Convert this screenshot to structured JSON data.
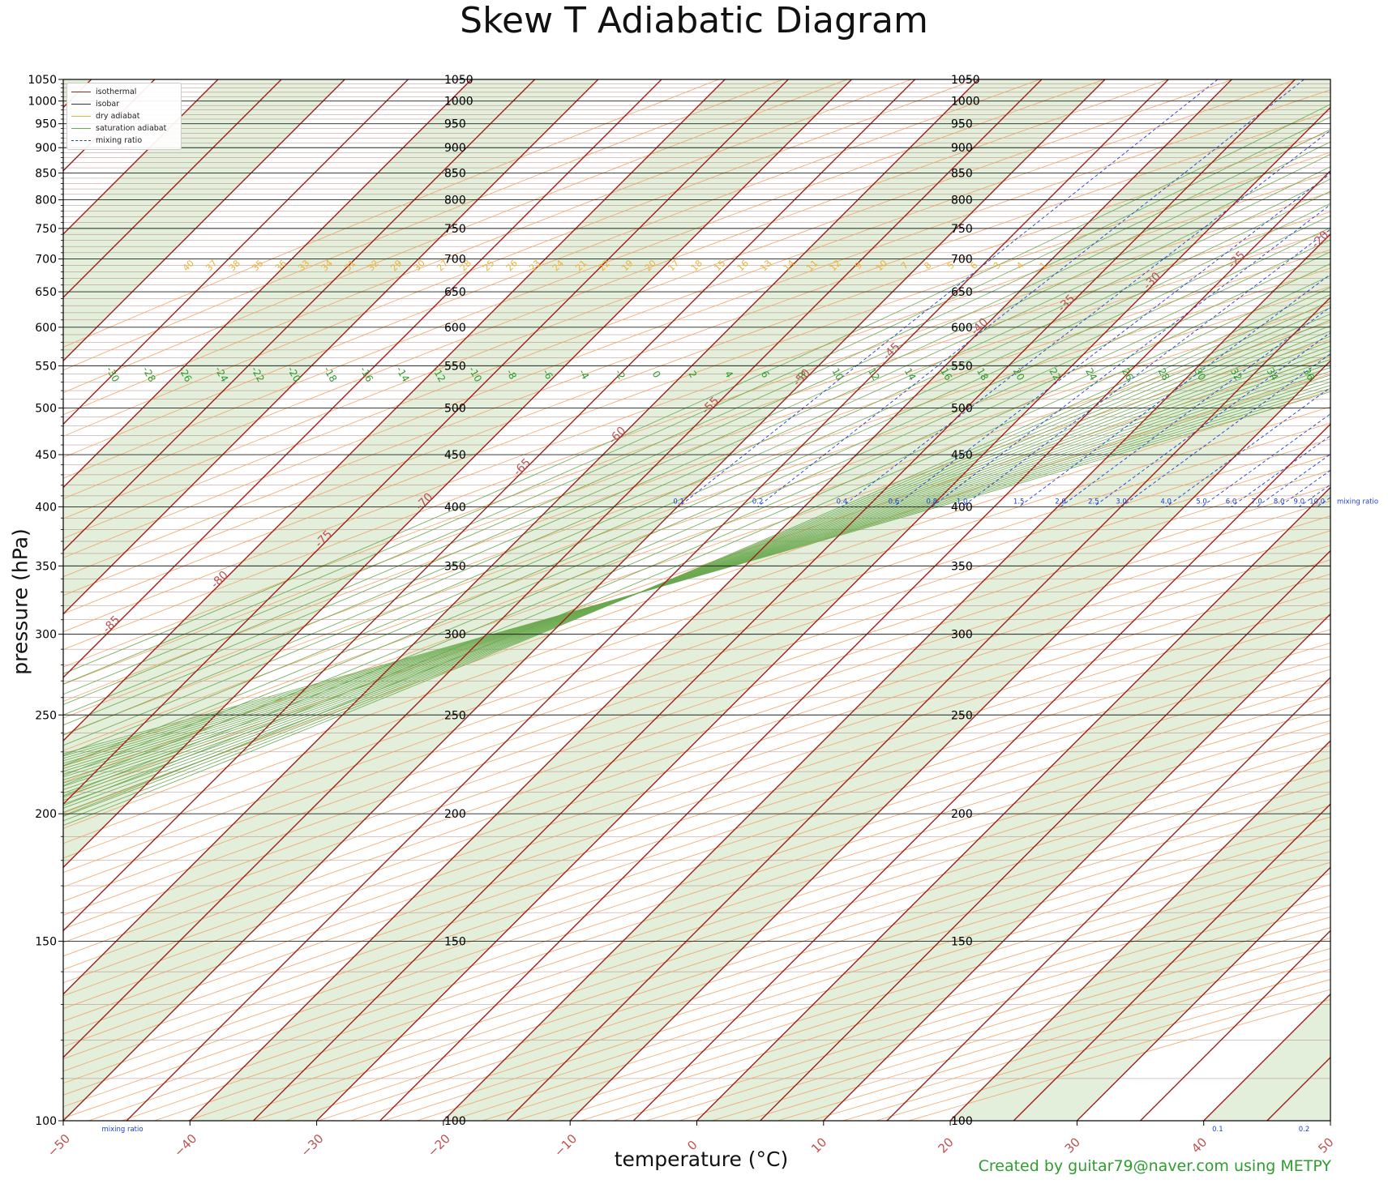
{
  "chart_data": {
    "type": "skew-t",
    "title": "Skew T Adiabatic Diagram",
    "xlabel": "temperature (°C)",
    "ylabel": "pressure (hPa)",
    "credit": "Created by guitar79@naver.com using METPY",
    "xlim": [
      -50,
      50
    ],
    "ylim": [
      1050,
      100
    ],
    "y_scale": "log",
    "x_ticks": [
      "−50",
      "−40",
      "−30",
      "−20",
      "−10",
      "0",
      "10",
      "20",
      "30",
      "40",
      "50"
    ],
    "x_tick_values": [
      -50,
      -40,
      -30,
      -20,
      -10,
      0,
      10,
      20,
      30,
      40,
      50
    ],
    "y_ticks": [
      100,
      150,
      200,
      250,
      300,
      350,
      400,
      450,
      500,
      550,
      600,
      650,
      700,
      750,
      800,
      850,
      900,
      950,
      1000,
      1050
    ],
    "legend": {
      "placement": "top-left",
      "entries": [
        {
          "label": "isothermal",
          "color": "#a0201a"
        },
        {
          "label": "isobar",
          "color": "#333333"
        },
        {
          "label": "dry adiabat",
          "color": "#e8b040"
        },
        {
          "label": "saturation adiabat",
          "color": "#6aa84f"
        },
        {
          "label": "mixing ratio",
          "color": "#1a3fd6"
        }
      ]
    },
    "isobar_labels": [
      100,
      150,
      200,
      250,
      300,
      350,
      400,
      450,
      500,
      550,
      600,
      650,
      700,
      750,
      800,
      850,
      900,
      950,
      1000,
      1050
    ],
    "isobar_label_columns": [
      -20,
      20
    ],
    "isotherms": {
      "from": -160,
      "to": 50,
      "step": 5
    },
    "moist_adiabat_labels": [
      -30,
      -28,
      -26,
      -24,
      -22,
      -20,
      -18,
      -16,
      -14,
      -12,
      -10,
      -8,
      -6,
      -4,
      -2,
      0,
      2,
      4,
      6,
      8,
      10,
      12,
      14,
      16,
      18,
      20,
      22,
      24,
      26,
      28,
      30,
      32,
      34,
      36,
      38
    ],
    "mixing_ratio_labels_400": [
      "0.1",
      "0.2",
      "0.4",
      "0.6",
      "0.8",
      "1.0",
      "1.5",
      "2.0",
      "2.5",
      "3.0",
      "4.0",
      "5.0",
      "6.0",
      "7.0",
      "8.0",
      "9.0",
      "10.0",
      "12.0",
      "14.0",
      "16.0",
      "18.0",
      "20.0",
      "22.0",
      "24.0",
      "26.0",
      "28.0",
      "30.0"
    ],
    "mixing_ratio_labels_1050": [
      "0.1",
      "0.2",
      "0.4",
      "0.6",
      "0.8",
      "1.0",
      "1.5",
      "2.0",
      "2.5",
      "3.0",
      "4.0",
      "5.0",
      "6.0",
      "7.0",
      "8.0",
      "9.0",
      "10.0",
      "12.0",
      "14.0",
      "16.0",
      "18.0",
      "20.0",
      "22.0",
      "24.0",
      "26.0",
      "28.0",
      "30.0",
      "33.0",
      "36.0",
      "40.0",
      "44.0",
      "48.0",
      "52.0",
      "56.0",
      "60.0",
      "65.0",
      "70.0"
    ],
    "mixing_ratio_title": "mixing ratio",
    "colors": {
      "isotherm": "#a0201a",
      "isotherm_label": "#c05050",
      "isobar": "#222222",
      "isobar_minor": "#a06060",
      "dry_adiabat": "#f0a060",
      "moist_adiabat": "#6aa84f",
      "moist_label": "#2a9a2a",
      "mixing_ratio": "#1a3fd6",
      "band_fill": "#e3eedb",
      "dry_label": "#f0b030"
    }
  }
}
